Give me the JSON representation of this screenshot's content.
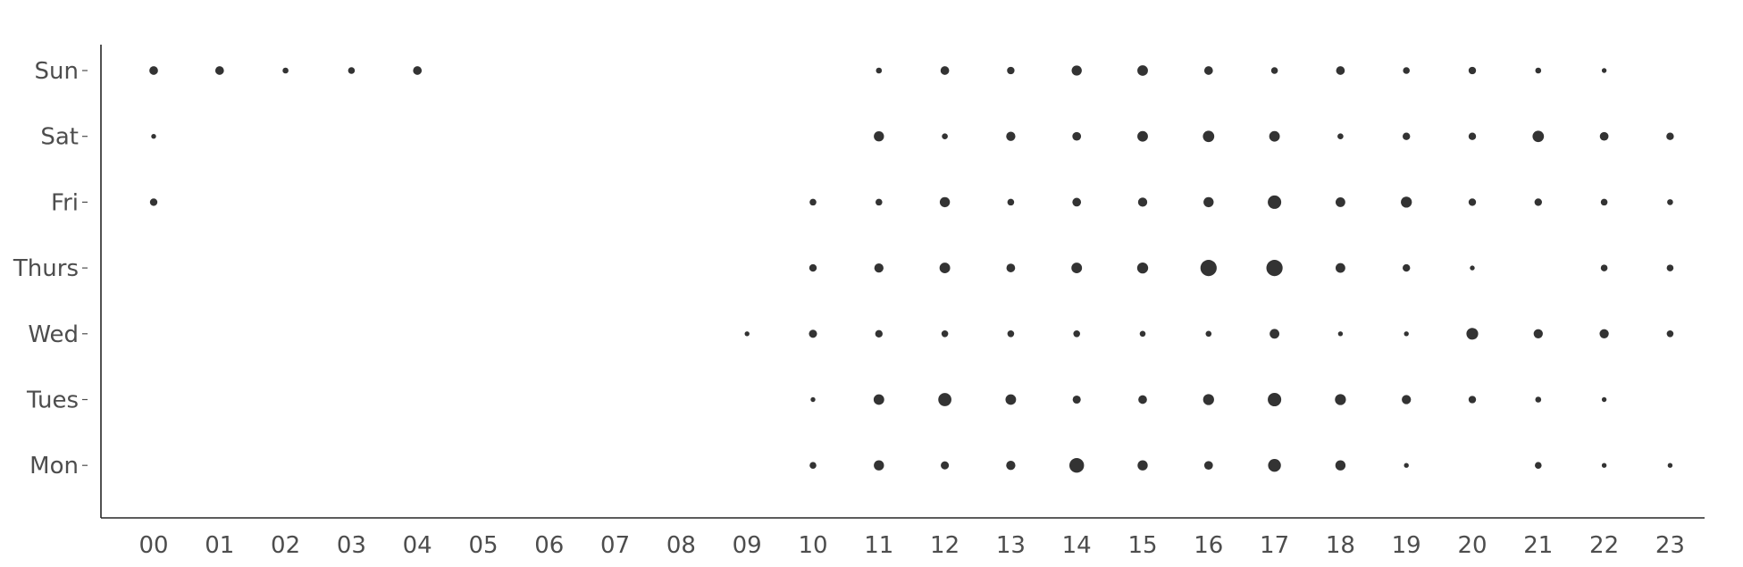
{
  "chart_data": {
    "type": "scatter",
    "title": "",
    "xlabel": "",
    "ylabel": "",
    "x_categories": [
      "00",
      "01",
      "02",
      "03",
      "04",
      "05",
      "06",
      "07",
      "08",
      "09",
      "10",
      "11",
      "12",
      "13",
      "14",
      "15",
      "16",
      "17",
      "18",
      "19",
      "20",
      "21",
      "22",
      "23"
    ],
    "y_categories": [
      "Mon",
      "Tues",
      "Wed",
      "Thurs",
      "Fri",
      "Sat",
      "Sun"
    ],
    "size_unit": "relative activity (point area)",
    "points": [
      {
        "day": "Sun",
        "hour": "00",
        "size": 3
      },
      {
        "day": "Sun",
        "hour": "01",
        "size": 3
      },
      {
        "day": "Sun",
        "hour": "02",
        "size": 1
      },
      {
        "day": "Sun",
        "hour": "03",
        "size": 1.5
      },
      {
        "day": "Sun",
        "hour": "04",
        "size": 3
      },
      {
        "day": "Sun",
        "hour": "11",
        "size": 1
      },
      {
        "day": "Sun",
        "hour": "12",
        "size": 3
      },
      {
        "day": "Sun",
        "hour": "13",
        "size": 2
      },
      {
        "day": "Sun",
        "hour": "14",
        "size": 4.5
      },
      {
        "day": "Sun",
        "hour": "15",
        "size": 5
      },
      {
        "day": "Sun",
        "hour": "16",
        "size": 3
      },
      {
        "day": "Sun",
        "hour": "17",
        "size": 1.5
      },
      {
        "day": "Sun",
        "hour": "18",
        "size": 3
      },
      {
        "day": "Sun",
        "hour": "19",
        "size": 1.5
      },
      {
        "day": "Sun",
        "hour": "20",
        "size": 2
      },
      {
        "day": "Sun",
        "hour": "21",
        "size": 1
      },
      {
        "day": "Sun",
        "hour": "22",
        "size": 0.5
      },
      {
        "day": "Sat",
        "hour": "00",
        "size": 0.5
      },
      {
        "day": "Sat",
        "hour": "11",
        "size": 4.5
      },
      {
        "day": "Sat",
        "hour": "12",
        "size": 1
      },
      {
        "day": "Sat",
        "hour": "13",
        "size": 3.5
      },
      {
        "day": "Sat",
        "hour": "14",
        "size": 3
      },
      {
        "day": "Sat",
        "hour": "15",
        "size": 5
      },
      {
        "day": "Sat",
        "hour": "16",
        "size": 6
      },
      {
        "day": "Sat",
        "hour": "17",
        "size": 5
      },
      {
        "day": "Sat",
        "hour": "18",
        "size": 1
      },
      {
        "day": "Sat",
        "hour": "19",
        "size": 2
      },
      {
        "day": "Sat",
        "hour": "20",
        "size": 2
      },
      {
        "day": "Sat",
        "hour": "21",
        "size": 6
      },
      {
        "day": "Sat",
        "hour": "22",
        "size": 3
      },
      {
        "day": "Sat",
        "hour": "23",
        "size": 2
      },
      {
        "day": "Fri",
        "hour": "00",
        "size": 2
      },
      {
        "day": "Fri",
        "hour": "10",
        "size": 1.5
      },
      {
        "day": "Fri",
        "hour": "11",
        "size": 1.5
      },
      {
        "day": "Fri",
        "hour": "12",
        "size": 4.5
      },
      {
        "day": "Fri",
        "hour": "13",
        "size": 1.5
      },
      {
        "day": "Fri",
        "hour": "14",
        "size": 3
      },
      {
        "day": "Fri",
        "hour": "15",
        "size": 3.5
      },
      {
        "day": "Fri",
        "hour": "16",
        "size": 4.5
      },
      {
        "day": "Fri",
        "hour": "17",
        "size": 9
      },
      {
        "day": "Fri",
        "hour": "18",
        "size": 4
      },
      {
        "day": "Fri",
        "hour": "19",
        "size": 5.5
      },
      {
        "day": "Fri",
        "hour": "20",
        "size": 2
      },
      {
        "day": "Fri",
        "hour": "21",
        "size": 2
      },
      {
        "day": "Fri",
        "hour": "22",
        "size": 1.5
      },
      {
        "day": "Fri",
        "hour": "23",
        "size": 1
      },
      {
        "day": "Thurs",
        "hour": "10",
        "size": 2
      },
      {
        "day": "Thurs",
        "hour": "11",
        "size": 3.5
      },
      {
        "day": "Thurs",
        "hour": "12",
        "size": 5
      },
      {
        "day": "Thurs",
        "hour": "13",
        "size": 3
      },
      {
        "day": "Thurs",
        "hour": "14",
        "size": 5
      },
      {
        "day": "Thurs",
        "hour": "15",
        "size": 5.5
      },
      {
        "day": "Thurs",
        "hour": "16",
        "size": 14
      },
      {
        "day": "Thurs",
        "hour": "17",
        "size": 14
      },
      {
        "day": "Thurs",
        "hour": "18",
        "size": 4
      },
      {
        "day": "Thurs",
        "hour": "19",
        "size": 2
      },
      {
        "day": "Thurs",
        "hour": "20",
        "size": 0.5
      },
      {
        "day": "Thurs",
        "hour": "22",
        "size": 1.5
      },
      {
        "day": "Thurs",
        "hour": "23",
        "size": 1.5
      },
      {
        "day": "Wed",
        "hour": "09",
        "size": 0.5
      },
      {
        "day": "Wed",
        "hour": "10",
        "size": 2.5
      },
      {
        "day": "Wed",
        "hour": "11",
        "size": 2
      },
      {
        "day": "Wed",
        "hour": "12",
        "size": 1.5
      },
      {
        "day": "Wed",
        "hour": "13",
        "size": 1.5
      },
      {
        "day": "Wed",
        "hour": "14",
        "size": 1.5
      },
      {
        "day": "Wed",
        "hour": "15",
        "size": 1
      },
      {
        "day": "Wed",
        "hour": "16",
        "size": 1
      },
      {
        "day": "Wed",
        "hour": "17",
        "size": 4
      },
      {
        "day": "Wed",
        "hour": "18",
        "size": 0.5
      },
      {
        "day": "Wed",
        "hour": "19",
        "size": 0.5
      },
      {
        "day": "Wed",
        "hour": "20",
        "size": 6.5
      },
      {
        "day": "Wed",
        "hour": "21",
        "size": 3.5
      },
      {
        "day": "Wed",
        "hour": "22",
        "size": 3.5
      },
      {
        "day": "Wed",
        "hour": "23",
        "size": 1.5
      },
      {
        "day": "Tues",
        "hour": "10",
        "size": 0.5
      },
      {
        "day": "Tues",
        "hour": "11",
        "size": 5
      },
      {
        "day": "Tues",
        "hour": "12",
        "size": 8.5
      },
      {
        "day": "Tues",
        "hour": "13",
        "size": 5
      },
      {
        "day": "Tues",
        "hour": "14",
        "size": 2.5
      },
      {
        "day": "Tues",
        "hour": "15",
        "size": 3
      },
      {
        "day": "Tues",
        "hour": "16",
        "size": 5.5
      },
      {
        "day": "Tues",
        "hour": "17",
        "size": 9
      },
      {
        "day": "Tues",
        "hour": "18",
        "size": 5.5
      },
      {
        "day": "Tues",
        "hour": "19",
        "size": 3.5
      },
      {
        "day": "Tues",
        "hour": "20",
        "size": 2
      },
      {
        "day": "Tues",
        "hour": "21",
        "size": 1
      },
      {
        "day": "Tues",
        "hour": "22",
        "size": 0.5
      },
      {
        "day": "Mon",
        "hour": "10",
        "size": 1.5
      },
      {
        "day": "Mon",
        "hour": "11",
        "size": 4.5
      },
      {
        "day": "Mon",
        "hour": "12",
        "size": 2.5
      },
      {
        "day": "Mon",
        "hour": "13",
        "size": 3.5
      },
      {
        "day": "Mon",
        "hour": "14",
        "size": 11
      },
      {
        "day": "Mon",
        "hour": "15",
        "size": 4.5
      },
      {
        "day": "Mon",
        "hour": "16",
        "size": 3
      },
      {
        "day": "Mon",
        "hour": "17",
        "size": 8
      },
      {
        "day": "Mon",
        "hour": "18",
        "size": 4.5
      },
      {
        "day": "Mon",
        "hour": "19",
        "size": 0.5
      },
      {
        "day": "Mon",
        "hour": "21",
        "size": 1.5
      },
      {
        "day": "Mon",
        "hour": "22",
        "size": 0.5
      },
      {
        "day": "Mon",
        "hour": "23",
        "size": 0.5
      }
    ],
    "grid": false,
    "legend": "none",
    "marker_color": "#333333"
  }
}
